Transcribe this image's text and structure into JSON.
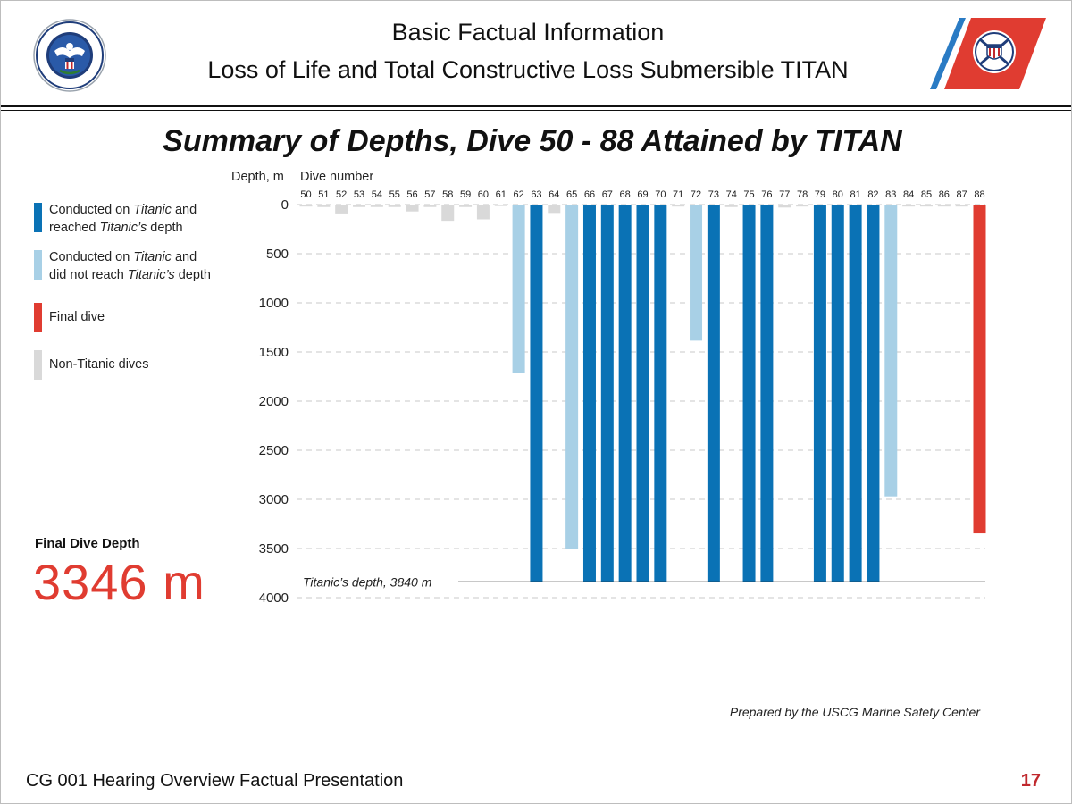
{
  "header": {
    "title_line1": "Basic Factual Information",
    "title_line2": "Loss of Life and Total Constructive Loss Submersible TITAN",
    "left_logo_icon": "dhs-seal-icon",
    "right_logo_icon": "uscg-racing-stripe-icon"
  },
  "subtitle": "Summary of Depths, Dive 50 - 88 Attained by TITAN",
  "legend": [
    {
      "key": "titanic-reached",
      "color": "#0a72b5",
      "line1_pre": "Conducted on ",
      "line1_em": "Titanic",
      "line1_post": " and",
      "line2_pre": "reached ",
      "line2_em": "Titanic’s",
      "line2_post": " depth"
    },
    {
      "key": "titanic-not-reached",
      "color": "#a8d0e6",
      "line1_pre": "Conducted on ",
      "line1_em": "Titanic",
      "line1_post": " and",
      "line2_pre": "did not reach ",
      "line2_em": "Titanic’s",
      "line2_post": " depth"
    },
    {
      "key": "final",
      "color": "#e03c31",
      "line1_pre": "Final dive",
      "line1_em": "",
      "line1_post": "",
      "line2_pre": "",
      "line2_em": "",
      "line2_post": ""
    },
    {
      "key": "non-titanic",
      "color": "#d9d9d9",
      "line1_pre": "Non-Titanic dives",
      "line1_em": "",
      "line1_post": "",
      "line2_pre": "",
      "line2_em": "",
      "line2_post": ""
    }
  ],
  "final_dive": {
    "label": "Final Dive Depth",
    "value": "3346 m"
  },
  "colors": {
    "titanic-reached": "#0a72b5",
    "titanic-not-reached": "#a8d0e6",
    "final": "#e03c31",
    "non-titanic": "#d9d9d9"
  },
  "chart_data": {
    "type": "bar",
    "title": "Summary of Depths, Dive 50 - 88 Attained by TITAN",
    "ylabel": "Depth, m",
    "xlabel": "Dive number",
    "y_inverted": true,
    "ylim": [
      0,
      4000
    ],
    "yticks": [
      "0",
      "500",
      "1000",
      "1500",
      "2000",
      "2500",
      "3000",
      "3500",
      "4000"
    ],
    "grid": true,
    "categories": [
      "50",
      "51",
      "52",
      "53",
      "54",
      "55",
      "56",
      "57",
      "58",
      "59",
      "60",
      "61",
      "62",
      "63",
      "64",
      "65",
      "66",
      "67",
      "68",
      "69",
      "70",
      "71",
      "72",
      "73",
      "74",
      "75",
      "76",
      "77",
      "78",
      "79",
      "80",
      "81",
      "82",
      "83",
      "84",
      "85",
      "86",
      "87",
      "88"
    ],
    "values": [
      20,
      25,
      90,
      25,
      25,
      25,
      70,
      25,
      165,
      25,
      150,
      15,
      1710,
      3840,
      85,
      3500,
      3840,
      3840,
      3840,
      3840,
      3840,
      20,
      1385,
      3840,
      25,
      3840,
      3840,
      30,
      20,
      3840,
      3840,
      3840,
      3840,
      2970,
      20,
      20,
      20,
      20,
      3346
    ],
    "bar_types": [
      "non-titanic",
      "non-titanic",
      "non-titanic",
      "non-titanic",
      "non-titanic",
      "non-titanic",
      "non-titanic",
      "non-titanic",
      "non-titanic",
      "non-titanic",
      "non-titanic",
      "non-titanic",
      "titanic-not-reached",
      "titanic-reached",
      "non-titanic",
      "titanic-not-reached",
      "titanic-reached",
      "titanic-reached",
      "titanic-reached",
      "titanic-reached",
      "titanic-reached",
      "non-titanic",
      "titanic-not-reached",
      "titanic-reached",
      "non-titanic",
      "titanic-reached",
      "titanic-reached",
      "non-titanic",
      "non-titanic",
      "titanic-reached",
      "titanic-reached",
      "titanic-reached",
      "titanic-reached",
      "titanic-not-reached",
      "non-titanic",
      "non-titanic",
      "non-titanic",
      "non-titanic",
      "final"
    ],
    "reference_line": {
      "value": 3840,
      "label": "Titanic’s depth, 3840 m"
    }
  },
  "prepared_by": "Prepared by the USCG Marine Safety Center",
  "footer": {
    "text": "CG 001 Hearing Overview Factual Presentation",
    "page": "17"
  }
}
